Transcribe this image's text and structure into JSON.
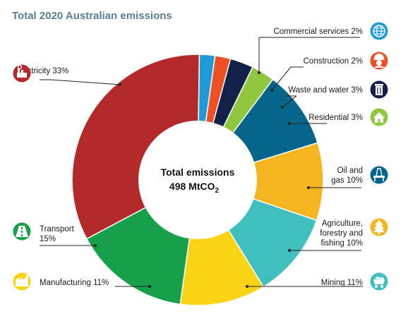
{
  "chart_data": {
    "type": "pie",
    "title": "Total 2020 Australian emissions",
    "center_label": "Total emissions",
    "center_value": "498 MtCO",
    "center_value_sub": "2",
    "categories": [
      {
        "line1": "Electricity 33%",
        "line2": "",
        "value": 33,
        "color": "#b42a2a",
        "icon": "power-plant-icon"
      },
      {
        "line1": "Commercial services 2%",
        "line2": "",
        "value": 2,
        "color": "#1e9bd7",
        "icon": "globe-icon"
      },
      {
        "line1": "Construction 2%",
        "line2": "",
        "value": 2,
        "color": "#ee4f23",
        "icon": "hard-hat-worker-icon"
      },
      {
        "line1": "Waste and water 3%",
        "line2": "",
        "value": 3,
        "color": "#13214a",
        "icon": "trash-bin-icon"
      },
      {
        "line1": "Residential 3%",
        "line2": "",
        "value": 3,
        "color": "#8fc73e",
        "icon": "house-icon"
      },
      {
        "line1": "Oil and",
        "line2": "gas 10%",
        "value": 10,
        "color": "#05658b",
        "icon": "oil-rig-icon"
      },
      {
        "line1": "Agriculture,",
        "line2": "forestry and",
        "line3": "fishing 10%",
        "value": 10,
        "color": "#f5b51e",
        "icon": "tree-icon"
      },
      {
        "line1": "Mining 11%",
        "line2": "",
        "value": 11,
        "color": "#3fbfbe",
        "icon": "mine-cart-icon"
      },
      {
        "line1": "Manufacturing 11%",
        "line2": "",
        "value": 11,
        "color": "#f9d314",
        "icon": "factory-icon"
      },
      {
        "line1": "Transport",
        "line2": "15%",
        "value": 15,
        "color": "#16a04a",
        "icon": "road-icon"
      }
    ]
  }
}
